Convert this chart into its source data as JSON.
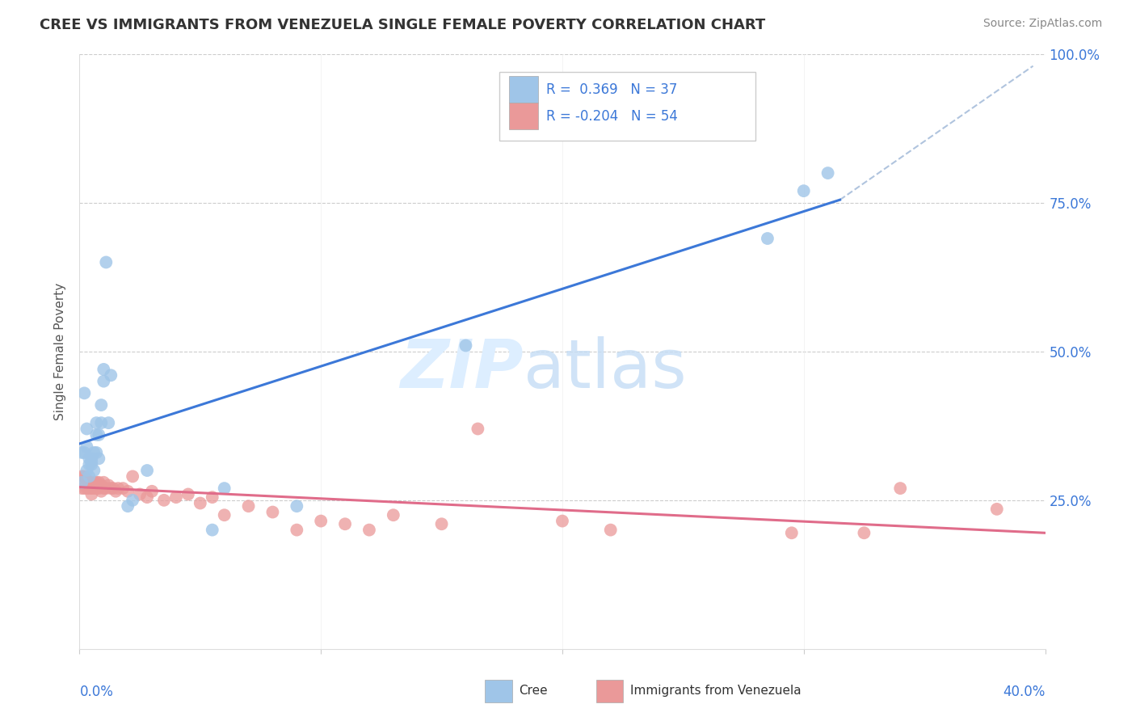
{
  "title": "CREE VS IMMIGRANTS FROM VENEZUELA SINGLE FEMALE POVERTY CORRELATION CHART",
  "source": "Source: ZipAtlas.com",
  "ylabel": "Single Female Poverty",
  "ytick_labels": [
    "",
    "25.0%",
    "50.0%",
    "75.0%",
    "100.0%"
  ],
  "ytick_positions": [
    0.0,
    0.25,
    0.5,
    0.75,
    1.0
  ],
  "xmin": 0.0,
  "xmax": 0.4,
  "ymin": 0.0,
  "ymax": 1.0,
  "cree_R": 0.369,
  "cree_N": 37,
  "venezuela_R": -0.204,
  "venezuela_N": 54,
  "cree_color": "#9fc5e8",
  "venezuela_color": "#ea9999",
  "trendline_cree_color": "#3c78d8",
  "trendline_venezuela_color": "#e06c8a",
  "dashed_line_color": "#b0c4de",
  "legend_labels": [
    "Cree",
    "Immigrants from Venezuela"
  ],
  "cree_scatter_x": [
    0.001,
    0.001,
    0.002,
    0.002,
    0.003,
    0.003,
    0.003,
    0.004,
    0.004,
    0.004,
    0.005,
    0.005,
    0.005,
    0.006,
    0.006,
    0.007,
    0.007,
    0.007,
    0.008,
    0.008,
    0.009,
    0.009,
    0.01,
    0.01,
    0.011,
    0.012,
    0.013,
    0.02,
    0.022,
    0.028,
    0.055,
    0.06,
    0.09,
    0.16,
    0.285,
    0.3,
    0.31
  ],
  "cree_scatter_y": [
    0.28,
    0.33,
    0.33,
    0.43,
    0.3,
    0.34,
    0.37,
    0.29,
    0.31,
    0.32,
    0.31,
    0.315,
    0.32,
    0.3,
    0.33,
    0.33,
    0.36,
    0.38,
    0.32,
    0.36,
    0.38,
    0.41,
    0.45,
    0.47,
    0.65,
    0.38,
    0.46,
    0.24,
    0.25,
    0.3,
    0.2,
    0.27,
    0.24,
    0.51,
    0.69,
    0.77,
    0.8
  ],
  "venezuela_scatter_x": [
    0.001,
    0.001,
    0.002,
    0.002,
    0.003,
    0.003,
    0.004,
    0.004,
    0.005,
    0.005,
    0.005,
    0.006,
    0.006,
    0.007,
    0.007,
    0.008,
    0.008,
    0.009,
    0.009,
    0.01,
    0.01,
    0.011,
    0.012,
    0.013,
    0.014,
    0.015,
    0.016,
    0.018,
    0.02,
    0.022,
    0.025,
    0.028,
    0.03,
    0.035,
    0.04,
    0.045,
    0.05,
    0.055,
    0.06,
    0.07,
    0.08,
    0.09,
    0.1,
    0.11,
    0.12,
    0.13,
    0.15,
    0.165,
    0.2,
    0.22,
    0.295,
    0.325,
    0.34,
    0.38
  ],
  "venezuela_scatter_y": [
    0.27,
    0.29,
    0.27,
    0.29,
    0.27,
    0.285,
    0.27,
    0.28,
    0.26,
    0.27,
    0.28,
    0.27,
    0.28,
    0.27,
    0.28,
    0.27,
    0.28,
    0.265,
    0.275,
    0.27,
    0.28,
    0.27,
    0.275,
    0.27,
    0.27,
    0.265,
    0.27,
    0.27,
    0.265,
    0.29,
    0.26,
    0.255,
    0.265,
    0.25,
    0.255,
    0.26,
    0.245,
    0.255,
    0.225,
    0.24,
    0.23,
    0.2,
    0.215,
    0.21,
    0.2,
    0.225,
    0.21,
    0.37,
    0.215,
    0.2,
    0.195,
    0.195,
    0.27,
    0.235
  ],
  "cree_line_x": [
    0.0,
    0.315
  ],
  "cree_line_y": [
    0.345,
    0.755
  ],
  "venezuela_line_x": [
    0.0,
    0.4
  ],
  "venezuela_line_y": [
    0.272,
    0.195
  ],
  "dashed_line_x": [
    0.315,
    0.395
  ],
  "dashed_line_y": [
    0.755,
    0.98
  ]
}
